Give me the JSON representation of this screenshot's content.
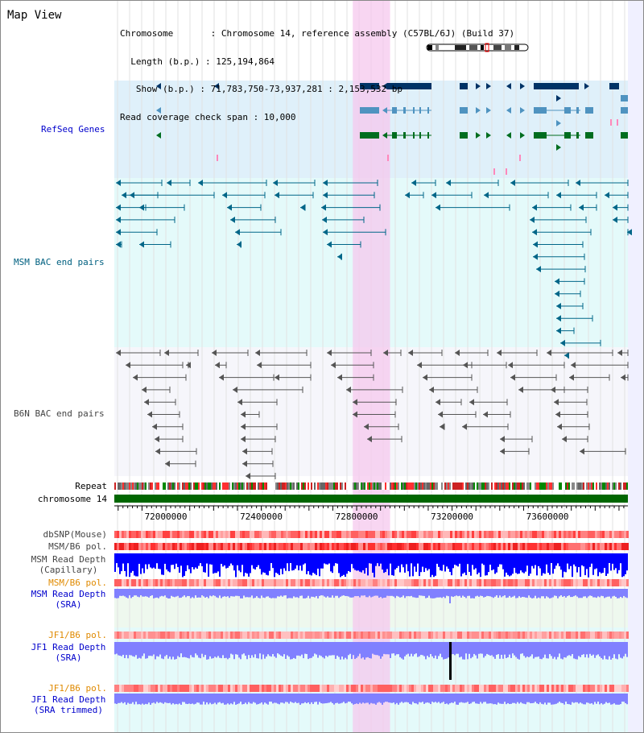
{
  "header": {
    "title": "Map View",
    "info_lines": [
      "Chromosome       : Chromosome 14, reference assembly (C57BL/6J) (Build 37)",
      "  Length (b.p.) : 125,194,864",
      "   Show (b.p.) : 71,783,750-73,937,281 : 2,153,532 bp",
      "Read coverage check span : 10,000"
    ]
  },
  "view": {
    "start": 71783750,
    "end": 73937281,
    "highlight_start": 72783750,
    "highlight_end": 72940000
  },
  "tracks": {
    "refseq": "RefSeq Genes",
    "msm_bac": "MSM BAC end pairs",
    "b6n_bac": "B6N BAC end pairs",
    "repeat": "Repeat",
    "chromosome": "chromosome 14",
    "dbsnp": "dbSNP(Mouse)",
    "msm_b6_pol_1": "MSM/B6 pol.",
    "msm_depth_cap_1": "MSM Read Depth",
    "msm_depth_cap_2": "(Capillary)",
    "msm_b6_pol_2": "MSM/B6 pol.",
    "msm_depth_sra_1": "MSM Read Depth",
    "msm_depth_sra_2": "(SRA)",
    "jf1_b6_pol_1": "JF1/B6 pol.",
    "jf1_depth_sra_1": "JF1 Read Depth",
    "jf1_depth_sra_2": "(SRA)",
    "jf1_b6_pol_2": "JF1/B6 pol.",
    "jf1_depth_trim_1": "JF1 Read Depth",
    "jf1_depth_trim_2": "(SRA trimmed)"
  },
  "axis": {
    "ticks": [
      72000000,
      72400000,
      72800000,
      73200000,
      73600000
    ]
  },
  "colors": {
    "refseq_bg": "#dff0fa",
    "msm_bg": "#e4fafa",
    "b6n_bg": "#f6f6fb",
    "highlight": "#f6c8ee",
    "chromosome": "#006600",
    "gene_dark": "#003366",
    "gene_mid": "#4f93c0",
    "gene_green": "#006d1f",
    "msm_pair": "#006688",
    "b6n_pair": "#555555",
    "depth_cap": "#0000ff",
    "depth_sra": "#8080ff",
    "pol_red": "#ff3030"
  }
}
